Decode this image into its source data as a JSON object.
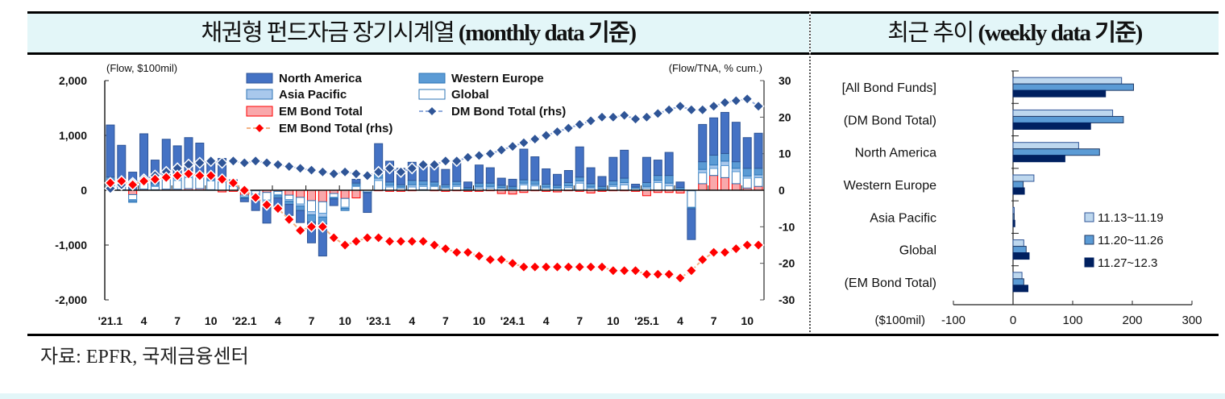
{
  "header": {
    "left_title_ko": "채권형 펀드자금 장기시계열",
    "left_title_en": "(monthly data 기준)",
    "right_title_ko": "최근 추이",
    "right_title_en": "(weekly data 기준)"
  },
  "source": "자료: EPFR,  국제금융센터",
  "colors": {
    "north_america": "#4472c4",
    "western_europe": "#5b9bd5",
    "asia_pacific": "#a9c8ec",
    "global": "#ffffff",
    "em_bond_total": "#f9a8ab",
    "em_line": "#ff0000",
    "dm_line": "#2f5597",
    "week1": "#bdd7ee",
    "week2": "#5b9bd5",
    "week3": "#002060"
  },
  "chart_data": [
    {
      "type": "bar",
      "subtype": "stacked-bar-with-lines",
      "title": "채권형 펀드자금 장기시계열 (monthly data 기준)",
      "ylabel": "(Flow, $100mil)",
      "y2label": "(Flow/TNA, % cum.)",
      "ylim": [
        -2000,
        2000
      ],
      "y2lim": [
        -30,
        30
      ],
      "yticks": [
        "2,000",
        "1,000",
        "0",
        "-1,000",
        "-2,000"
      ],
      "y2ticks": [
        "30",
        "20",
        "10",
        "0",
        "-10",
        "-20",
        "-30"
      ],
      "xtick_labels": [
        "'21.1",
        "4",
        "7",
        "10",
        "'22.1",
        "4",
        "7",
        "10",
        "'23.1",
        "4",
        "7",
        "10",
        "'24.1",
        "4",
        "7",
        "10",
        "'25.1",
        "4",
        "7",
        "10"
      ],
      "legend": [
        "North America",
        "Western Europe",
        "Asia Pacific",
        "Global",
        "EM Bond Total",
        "DM Bond Total (rhs)",
        "EM Bond Total (rhs)"
      ],
      "legend_position": "top-center",
      "months": [
        "2021-01",
        "2021-02",
        "2021-03",
        "2021-04",
        "2021-05",
        "2021-06",
        "2021-07",
        "2021-08",
        "2021-09",
        "2021-10",
        "2021-11",
        "2021-12",
        "2022-01",
        "2022-02",
        "2022-03",
        "2022-04",
        "2022-05",
        "2022-06",
        "2022-07",
        "2022-08",
        "2022-09",
        "2022-10",
        "2022-11",
        "2022-12",
        "2023-01",
        "2023-02",
        "2023-03",
        "2023-04",
        "2023-05",
        "2023-06",
        "2023-07",
        "2023-08",
        "2023-09",
        "2023-10",
        "2023-11",
        "2023-12",
        "2024-01",
        "2024-02",
        "2024-03",
        "2024-04",
        "2024-05",
        "2024-06",
        "2024-07",
        "2024-08",
        "2024-09",
        "2024-10",
        "2024-11",
        "2024-12",
        "2025-01",
        "2025-02",
        "2025-03",
        "2025-04",
        "2025-05",
        "2025-06",
        "2025-07",
        "2025-08",
        "2025-09",
        "2025-10",
        "2025-11"
      ],
      "series": [
        {
          "name": "North America",
          "values": [
            950,
            640,
            330,
            800,
            420,
            610,
            500,
            600,
            520,
            250,
            370,
            80,
            -60,
            -250,
            -280,
            -170,
            -200,
            -220,
            -380,
            -590,
            -120,
            0,
            70,
            -360,
            550,
            380,
            300,
            330,
            280,
            310,
            280,
            400,
            100,
            330,
            280,
            130,
            130,
            560,
            430,
            280,
            200,
            220,
            550,
            290,
            180,
            430,
            510,
            50,
            460,
            280,
            420,
            100,
            -560,
            680,
            680,
            750,
            720,
            560,
            640
          ]
        },
        {
          "name": "Western Europe",
          "values": [
            60,
            40,
            -30,
            60,
            40,
            70,
            90,
            90,
            70,
            60,
            50,
            30,
            -20,
            -30,
            -90,
            -40,
            -60,
            -80,
            -130,
            -120,
            -20,
            -40,
            40,
            -10,
            80,
            60,
            40,
            80,
            70,
            60,
            40,
            60,
            20,
            60,
            60,
            40,
            30,
            60,
            70,
            50,
            40,
            60,
            70,
            60,
            40,
            70,
            80,
            20,
            70,
            90,
            140,
            40,
            -20,
            140,
            180,
            140,
            120,
            140,
            120
          ]
        },
        {
          "name": "Asia Pacific",
          "values": [
            30,
            20,
            -20,
            40,
            20,
            30,
            40,
            40,
            30,
            20,
            10,
            10,
            -10,
            -20,
            -50,
            -20,
            -30,
            -40,
            -60,
            -70,
            -10,
            -20,
            20,
            -5,
            40,
            30,
            20,
            40,
            30,
            20,
            20,
            30,
            10,
            30,
            30,
            20,
            20,
            30,
            30,
            20,
            20,
            30,
            40,
            20,
            10,
            30,
            40,
            10,
            30,
            40,
            50,
            10,
            -10,
            60,
            60,
            80,
            60,
            40,
            50
          ]
        },
        {
          "name": "Global",
          "values": [
            130,
            110,
            -90,
            110,
            60,
            200,
            160,
            200,
            210,
            160,
            150,
            70,
            -30,
            -60,
            -140,
            -60,
            -80,
            -120,
            -200,
            -210,
            -70,
            -160,
            70,
            -30,
            180,
            60,
            40,
            60,
            60,
            70,
            40,
            70,
            20,
            40,
            40,
            30,
            20,
            100,
            80,
            40,
            30,
            50,
            130,
            40,
            20,
            70,
            100,
            30,
            40,
            140,
            80,
            0,
            -300,
            200,
            130,
            220,
            220,
            180,
            160
          ]
        },
        {
          "name": "EM Bond Total",
          "values": [
            20,
            10,
            -80,
            20,
            10,
            20,
            20,
            30,
            30,
            10,
            -30,
            -20,
            -90,
            -10,
            -40,
            -20,
            -90,
            -130,
            -190,
            -210,
            -60,
            -150,
            -140,
            0,
            -10,
            -20,
            -20,
            -10,
            10,
            -10,
            -20,
            -10,
            -20,
            -20,
            -10,
            -60,
            -70,
            -40,
            -10,
            -20,
            -30,
            -10,
            -20,
            -50,
            -20,
            -10,
            -10,
            -20,
            -100,
            -40,
            -40,
            -50,
            -10,
            120,
            270,
            230,
            120,
            40,
            70
          ]
        },
        {
          "name": "DM Bond Total (rhs)",
          "axis": "rhs",
          "values": [
            0.5,
            1.5,
            2,
            3,
            4,
            5,
            6,
            7,
            7.5,
            8,
            7.5,
            8,
            7.5,
            8,
            7.5,
            7,
            6.5,
            6,
            5.5,
            5,
            4.5,
            5,
            4.5,
            4,
            5,
            6,
            5,
            6,
            7,
            7,
            8,
            8,
            9,
            9.5,
            10,
            11,
            12,
            13,
            14,
            15,
            16,
            17,
            18,
            19,
            20,
            20,
            20.5,
            19.5,
            20,
            21,
            22,
            23,
            22,
            22,
            23,
            24,
            24.5,
            25,
            23
          ]
        },
        {
          "name": "EM Bond Total (rhs)",
          "axis": "rhs",
          "values": [
            2,
            2.5,
            1.5,
            2.5,
            3,
            3.5,
            4,
            4.5,
            4,
            4,
            3,
            2,
            0,
            -2,
            -4,
            -5,
            -8,
            -11,
            -10,
            -10,
            -13,
            -15,
            -14,
            -13,
            -13,
            -14,
            -14,
            -14,
            -14,
            -15,
            -16,
            -17,
            -17,
            -18,
            -19,
            -19,
            -20,
            -21,
            -21,
            -21,
            -21,
            -21,
            -21,
            -21,
            -21,
            -22,
            -22,
            -22,
            -23,
            -23,
            -23,
            -24,
            -22,
            -19,
            -17,
            -17,
            -16,
            -15,
            -15
          ]
        }
      ]
    },
    {
      "type": "bar",
      "subtype": "horizontal-grouped-bar",
      "title": "최근 추이 (weekly data 기준)",
      "xlabel": "($100mil)",
      "xlim": [
        -100,
        300
      ],
      "xticks": [
        "-100",
        "0",
        "100",
        "200",
        "300"
      ],
      "categories": [
        "[All Bond Funds]",
        "(DM Bond Total)",
        "North America",
        "Western Europe",
        "Asia Pacific",
        "Global",
        "(EM Bond Total)"
      ],
      "legend_position": "right",
      "series": [
        {
          "name": "11.13~11.19",
          "values": [
            182,
            167,
            110,
            35,
            2,
            18,
            15
          ]
        },
        {
          "name": "11.20~11.26",
          "values": [
            202,
            185,
            145,
            17,
            2,
            22,
            18
          ]
        },
        {
          "name": "11.27~12.3",
          "values": [
            155,
            130,
            87,
            19,
            3,
            27,
            25
          ]
        }
      ]
    }
  ]
}
